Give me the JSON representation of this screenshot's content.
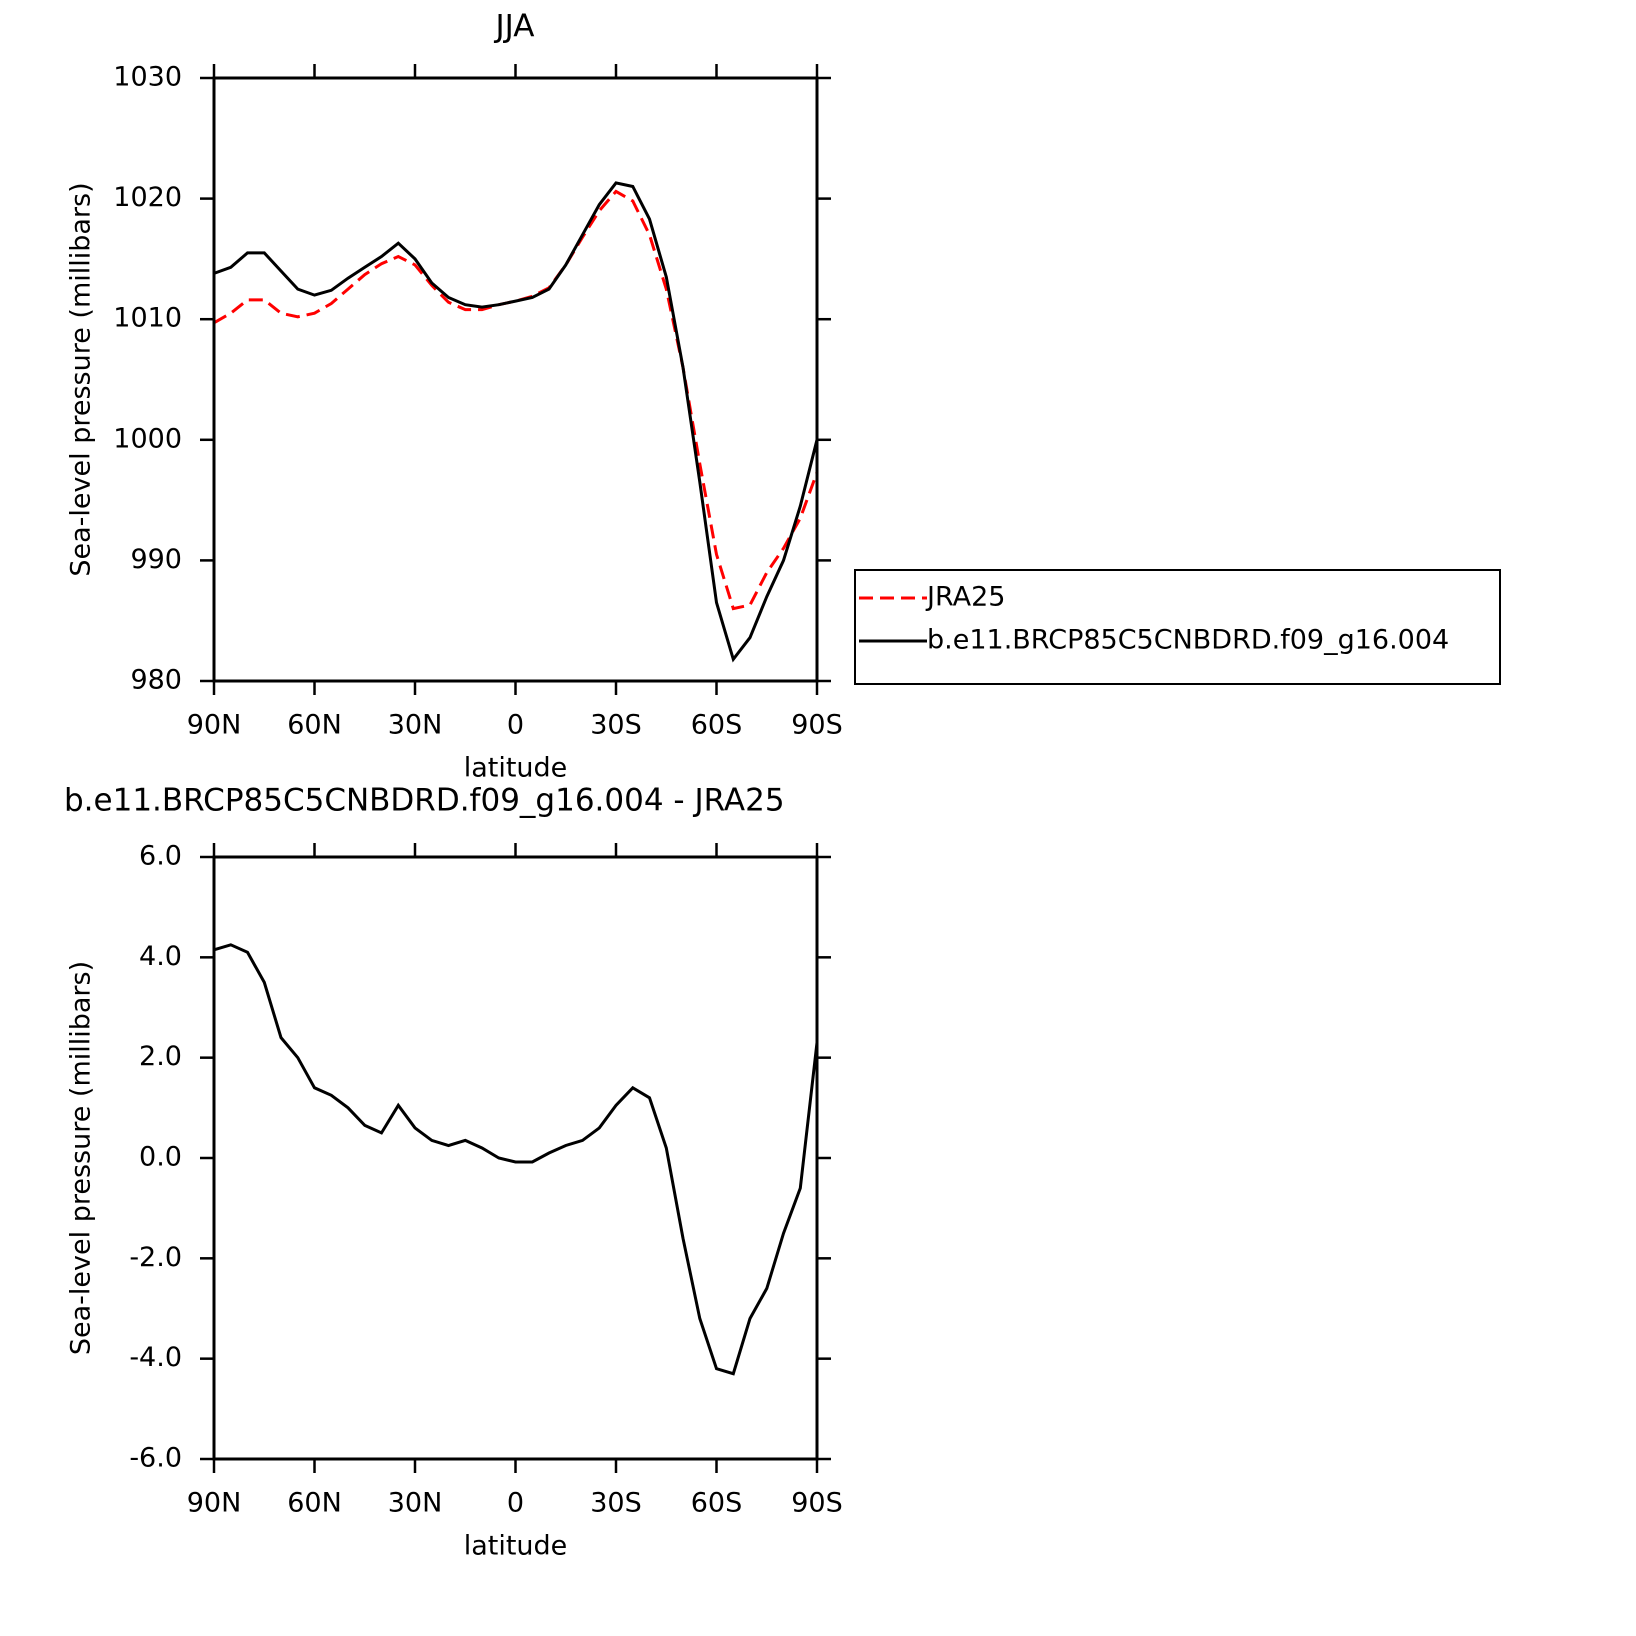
{
  "chart_data": [
    {
      "type": "line",
      "title": "JJA",
      "xlabel": "latitude",
      "ylabel": "Sea-level pressure (millibars)",
      "x": [
        90,
        85,
        80,
        75,
        70,
        65,
        60,
        55,
        50,
        45,
        40,
        35,
        30,
        25,
        20,
        15,
        10,
        5,
        0,
        -5,
        -10,
        -15,
        -20,
        -25,
        -30,
        -35,
        -40,
        -45,
        -50,
        -55,
        -60,
        -65,
        -70,
        -75,
        -80,
        -85,
        -90
      ],
      "series": [
        {
          "name": "JRA25",
          "color": "#ff0000",
          "dashed": true,
          "values": [
            1009.7,
            1010.5,
            1011.6,
            1011.6,
            1010.5,
            1010.2,
            1010.5,
            1011.3,
            1012.5,
            1013.7,
            1014.6,
            1015.2,
            1014.5,
            1012.8,
            1011.4,
            1010.8,
            1010.8,
            1011.2,
            1011.5,
            1011.9,
            1012.6,
            1014.5,
            1016.8,
            1019.0,
            1020.6,
            1019.8,
            1017.0,
            1012.5,
            1006.0,
            998.0,
            990.5,
            986.0,
            986.3,
            989.0,
            991.0,
            993.5,
            997.3
          ]
        },
        {
          "name": "b.e11.BRCP85C5CNBDRD.f09_g16.004",
          "color": "#000000",
          "dashed": false,
          "values": [
            1013.8,
            1014.3,
            1015.5,
            1015.5,
            1014.0,
            1012.5,
            1012.0,
            1012.4,
            1013.4,
            1014.3,
            1015.2,
            1016.3,
            1015.0,
            1013.0,
            1011.8,
            1011.2,
            1011.0,
            1011.2,
            1011.5,
            1011.8,
            1012.5,
            1014.5,
            1017.0,
            1019.5,
            1021.3,
            1021.0,
            1018.3,
            1013.5,
            1006.0,
            996.5,
            986.5,
            981.8,
            983.6,
            987.0,
            990.0,
            994.5,
            1000.0
          ]
        }
      ],
      "xlim": [
        90,
        -90
      ],
      "xticks": [
        {
          "value": 90,
          "label": "90N"
        },
        {
          "value": 60,
          "label": "60N"
        },
        {
          "value": 30,
          "label": "30N"
        },
        0,
        {
          "value": -30,
          "label": "30S"
        },
        {
          "value": -60,
          "label": "60S"
        },
        {
          "value": -90,
          "label": "90S"
        }
      ],
      "ylim": [
        980,
        1030
      ],
      "yticks": [
        980,
        990,
        1000,
        1010,
        1020,
        1030
      ],
      "legend": "outside-right"
    },
    {
      "type": "line",
      "title": "b.e11.BRCP85C5CNBDRD.f09_g16.004 - JRA25",
      "xlabel": "latitude",
      "ylabel": "Sea-level pressure (millibars)",
      "x": [
        90,
        85,
        80,
        75,
        70,
        65,
        60,
        55,
        50,
        45,
        40,
        35,
        30,
        25,
        20,
        15,
        10,
        5,
        0,
        -5,
        -10,
        -15,
        -20,
        -25,
        -30,
        -35,
        -40,
        -45,
        -50,
        -55,
        -60,
        -65,
        -70,
        -75,
        -80,
        -85,
        -90
      ],
      "series": [
        {
          "color": "#000000",
          "dashed": false,
          "values": [
            4.15,
            4.25,
            4.1,
            3.5,
            2.4,
            2.0,
            1.4,
            1.25,
            1.0,
            0.65,
            0.5,
            1.05,
            0.6,
            0.35,
            0.25,
            0.35,
            0.2,
            0.0,
            -0.08,
            -0.08,
            0.1,
            0.25,
            0.35,
            0.6,
            1.05,
            1.4,
            1.2,
            0.2,
            -1.6,
            -3.2,
            -4.2,
            -4.3,
            -3.2,
            -2.6,
            -1.5,
            -0.6,
            2.3
          ]
        }
      ],
      "xlim": [
        90,
        -90
      ],
      "xticks": [
        {
          "value": 90,
          "label": "90N"
        },
        {
          "value": 60,
          "label": "60N"
        },
        {
          "value": 30,
          "label": "30N"
        },
        0,
        {
          "value": -30,
          "label": "30S"
        },
        {
          "value": -60,
          "label": "60S"
        },
        {
          "value": -90,
          "label": "90S"
        }
      ],
      "ylim": [
        -6,
        6
      ],
      "yticks": [
        {
          "value": -6,
          "label": "-6.0"
        },
        {
          "value": -4,
          "label": "-4.0"
        },
        {
          "value": -2,
          "label": "-2.0"
        },
        {
          "value": 0,
          "label": "0.0"
        },
        {
          "value": 2,
          "label": "2.0"
        },
        {
          "value": 4,
          "label": "4.0"
        },
        {
          "value": 6,
          "label": "6.0"
        }
      ]
    }
  ]
}
